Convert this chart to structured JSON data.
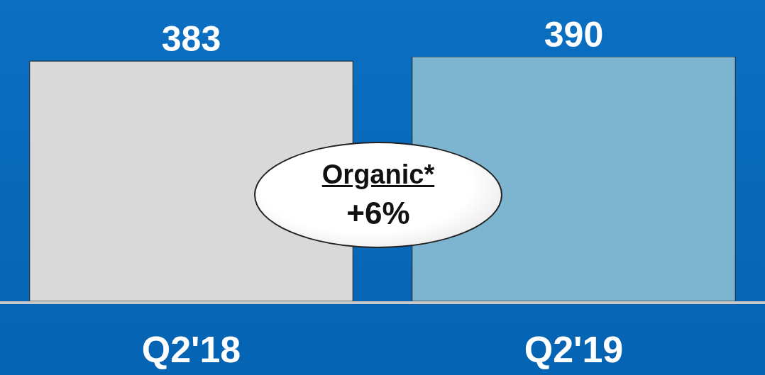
{
  "chart_data": {
    "type": "bar",
    "categories": [
      "Q2'18",
      "Q2'19"
    ],
    "values": [
      383,
      390
    ],
    "colors": [
      "#d9d9d9",
      "#7db4cf"
    ],
    "data_labels": true,
    "grid": false,
    "legend": false,
    "annotations": [
      "Organic*",
      "+6%"
    ]
  }
}
